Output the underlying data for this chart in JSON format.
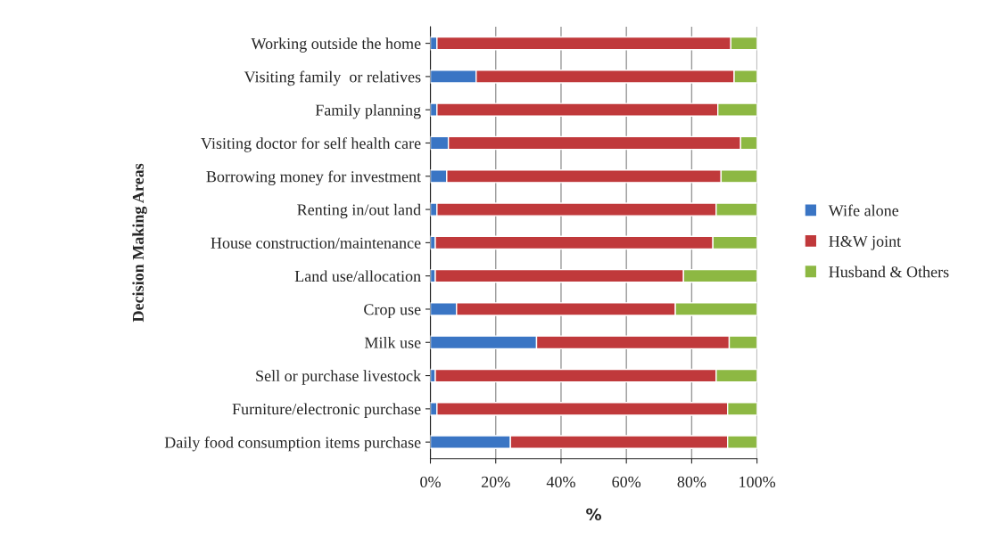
{
  "chart_data": {
    "type": "bar",
    "orientation": "horizontal",
    "stacked": true,
    "ylabel": "Decision Making Areas",
    "xlabel": "%",
    "categories": [
      "Working outside the home",
      "Visiting family  or relatives",
      "Family planning",
      "Visiting doctor for self health care",
      "Borrowing money for investment",
      "Renting in/out land",
      "House construction/maintenance",
      "Land use/allocation",
      "Crop use",
      "Milk use",
      "Sell or purchase livestock",
      "Furniture/electronic purchase",
      "Daily food consumption items purchase"
    ],
    "series": [
      {
        "name": "Wife alone",
        "color": "#3a75c4",
        "values": [
          2,
          14,
          2,
          5.5,
          5,
          2,
          1.5,
          1.5,
          8,
          32.5,
          1.5,
          2,
          24.5
        ]
      },
      {
        "name": "H&W joint",
        "color": "#c0393b",
        "values": [
          90,
          79,
          86,
          89.5,
          84,
          85.5,
          85,
          76,
          67,
          59,
          86,
          89,
          66.5
        ]
      },
      {
        "name": "Husband & Others",
        "color": "#8db843",
        "values": [
          8,
          7,
          12,
          5,
          11,
          12.5,
          13.5,
          22.5,
          25,
          8.5,
          12.5,
          9,
          9
        ]
      }
    ],
    "xlim": [
      0,
      100
    ],
    "xticks": [
      {
        "value": 0,
        "label": "0%"
      },
      {
        "value": 20,
        "label": "20%"
      },
      {
        "value": 40,
        "label": "40%"
      },
      {
        "value": 60,
        "label": "60%"
      },
      {
        "value": 80,
        "label": "80%"
      },
      {
        "value": 100,
        "label": "100%"
      }
    ],
    "grid": "x",
    "legend": "right"
  }
}
